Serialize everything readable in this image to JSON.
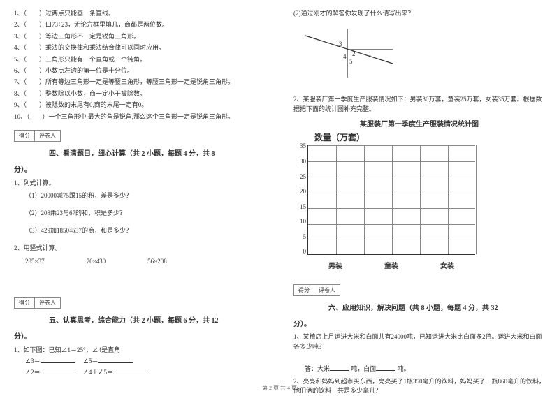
{
  "left": {
    "trueFalse": [
      "1、（　　）过两点只能画一条直线。",
      "2、（　　）口73÷23，无论方框里填几，商都是两位数。",
      "3、（　　）等边三角形不一定是锐角三角形。",
      "4、（　　）乘法的交换律和乘法结合律可以同时应用。",
      "5、（　　）三角形只能有一个直角或一个钝角。",
      "6、（　　）小数点左边的第一位是十分位。",
      "7、（　　）所有等边三角形一定是等腰三角形，等腰三角形一定是锐角三角形。",
      "8、（　　）整数除以小数，商一定小于被除数。",
      "9、（　　）被除数的末尾有0,商的末尾一定有0。",
      "10、（　　）一个三角形中,最大的角是锐角,那么这个三角形一定是锐角三角形。"
    ],
    "scoreLabels": {
      "score": "得分",
      "grader": "评卷人"
    },
    "section4Title": "四、看清题目，细心计算（共 2 小题，每题 4 分，共 8",
    "section4End": "分）。",
    "q1": {
      "title": "1、列式计算。",
      "items": [
        "（1）20000减75跟15的积，差是多少？",
        "（2）208乘23与67的和，积是多少？",
        "（3）429加1850与37的商，和是多少？"
      ]
    },
    "q2": {
      "title": "2、用竖式计算。",
      "items": [
        "285×37",
        "70×430",
        "56×208"
      ]
    },
    "section5Title": "五、认真思考，综合能力（共 2 小题，每题 6 分，共 12",
    "section5End": "分）。",
    "angle": {
      "title": "1、如下图：已知∠1＝25°，∠4是直角",
      "rows": [
        [
          "∠3＝",
          "∠5＝"
        ],
        [
          "∠2＝",
          "∠4＋∠5＝"
        ]
      ]
    }
  },
  "right": {
    "continuation": "(2)通过刚才的解答你发现了什么请写出来？",
    "angleDiagram": {
      "line_color": "#333333",
      "label_fontsize": 9,
      "labels": [
        "1",
        "2",
        "3",
        "4",
        "5"
      ]
    },
    "q2Text": "2、某服装厂第一季度生产服装情况如下：男装30万套，童装25万套，女装35万套。根据数据把下面的统计图补充完整。",
    "chart": {
      "title": "某服装厂第一季度生产服装情况统计图",
      "ylabel": "数量（万套）",
      "yticks": [
        "35",
        "30",
        "25",
        "20",
        "15",
        "10",
        "5",
        "0"
      ],
      "ylim": [
        0,
        35
      ],
      "ytick_step": 5,
      "xcategories": [
        "男装",
        "童装",
        "女装"
      ],
      "grid_color": "#888888",
      "axis_color": "#333333",
      "background_color": "#ffffff",
      "type": "bar",
      "num_vlines": 6
    },
    "scoreLabels": {
      "score": "得分",
      "grader": "评卷人"
    },
    "section6Title": "六、应用知识，解决问题（共 8 小题，每题 4 分，共 32",
    "section6End": "分）。",
    "app1": "1、某粮店上月运进大米和白面共有24000吨，已知运进大米比白面多2倍。运进大米和白面各多少吨？",
    "app1Answer": {
      "prefix": "答：大米",
      "mid": "吨，白面",
      "suffix": "吨。"
    },
    "app2": "2、亮亮和妈妈到超市买东西，亮亮买了1瓶350毫升的饮料，妈妈买了一瓶860毫升的饮料，他们俩的饮料一共是多少毫升？"
  },
  "footer": "第 2 页 共 4 页"
}
